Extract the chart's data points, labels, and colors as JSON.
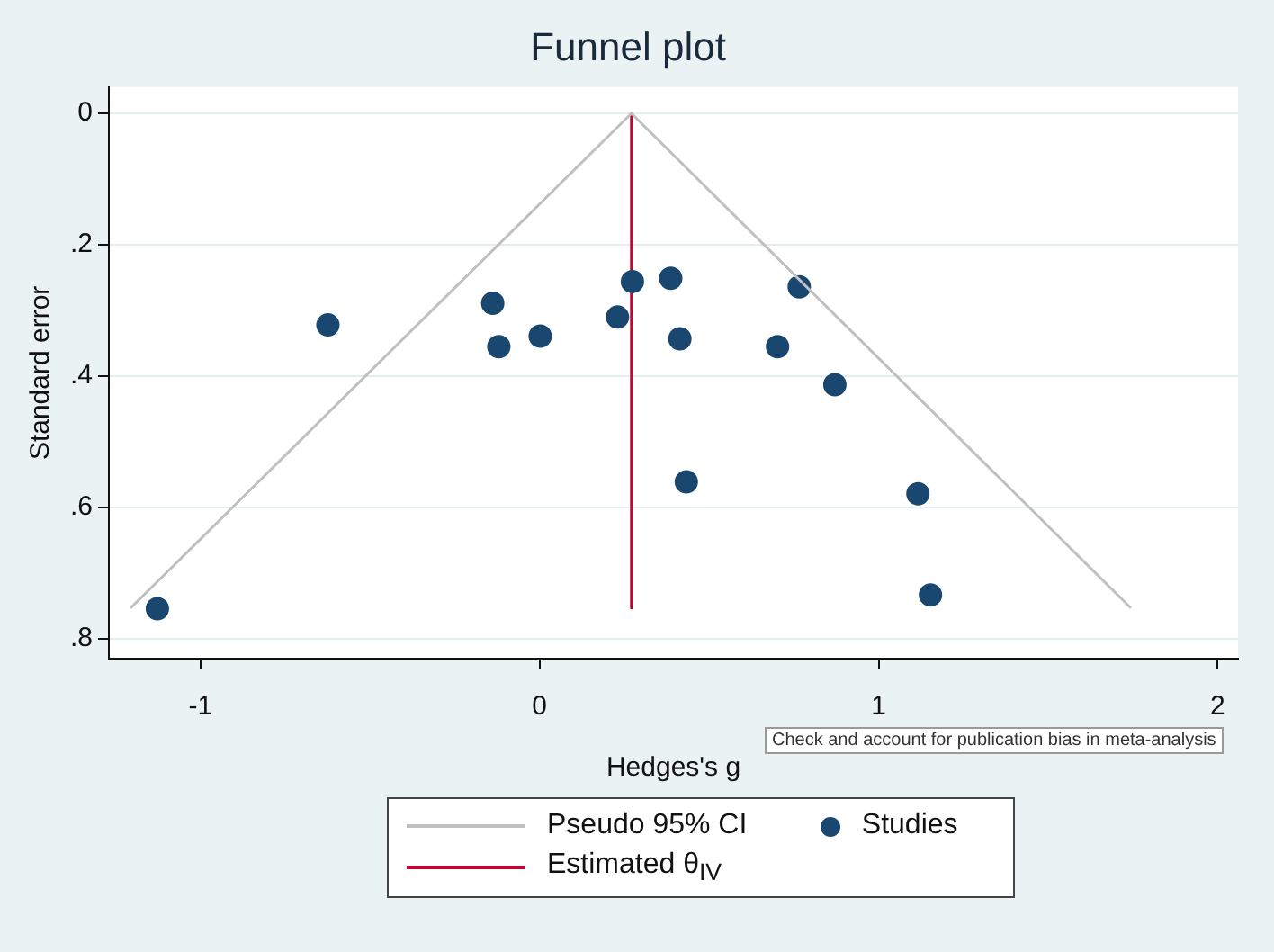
{
  "chart_data": {
    "type": "scatter",
    "title": "Funnel plot",
    "xlabel": "Hedges's g",
    "ylabel": "Standard error",
    "xlim": [
      -1.27,
      2.06
    ],
    "xticks": [
      -1,
      0,
      1,
      2
    ],
    "ylim": [
      0.83,
      -0.04
    ],
    "yticks": [
      {
        "value": 0,
        "label": "0"
      },
      {
        "value": 0.2,
        "label": ".2"
      },
      {
        "value": 0.4,
        "label": ".4"
      },
      {
        "value": 0.6,
        "label": ".6"
      },
      {
        "value": 0.8,
        "label": ".8"
      }
    ],
    "grid": "y",
    "legend": "bottom",
    "series": [
      {
        "name": "Pseudo 95% CI",
        "type": "line",
        "marker": "none",
        "color": "#c0c0c0",
        "x": [
          -1.206,
          0.271,
          1.744
        ],
        "values": [
          0.753,
          0,
          0.753
        ]
      },
      {
        "name": "Studies",
        "type": "scatter",
        "marker": "circle",
        "color": "#1a476f",
        "x": [
          -1.127,
          -0.624,
          -0.138,
          -0.12,
          0.002,
          0.23,
          0.274,
          0.387,
          0.414,
          0.433,
          0.702,
          0.766,
          0.871,
          1.116,
          1.153
        ],
        "values": [
          0.754,
          0.322,
          0.289,
          0.355,
          0.339,
          0.31,
          0.256,
          0.251,
          0.343,
          0.561,
          0.355,
          0.264,
          0.413,
          0.579,
          0.733
        ]
      },
      {
        "name": "Estimated θ$_{IV}$",
        "type": "line",
        "marker": "none",
        "color": "#c10534",
        "x": [
          0.271,
          0.271
        ],
        "values": [
          0,
          0.753
        ]
      }
    ],
    "annotations": [
      "Check and account for publication bias in meta-analysis"
    ]
  }
}
